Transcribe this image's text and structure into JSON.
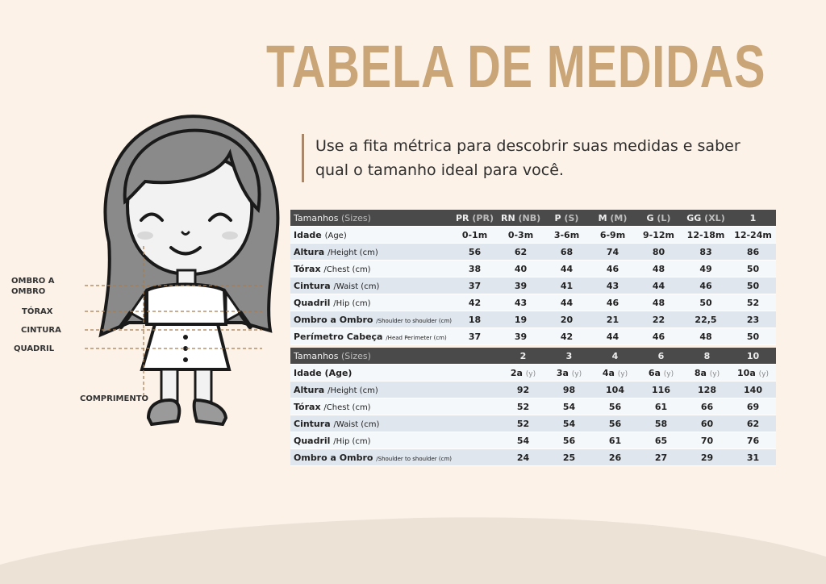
{
  "title": "TABELA DE MEDIDAS",
  "subtitle": "Use a fita métrica para descobrir suas medidas e saber qual o tamanho ideal para você.",
  "measure_labels": {
    "ombro_line1": "OMBRO A",
    "ombro_line2": "OMBRO",
    "torax": "TÓRAX",
    "cintura": "CINTURA",
    "quadril": "QUADRIL",
    "comprimento": "COMPRIMENTO"
  },
  "table1": {
    "header": {
      "label": "Tamanhos",
      "label_en": "(Sizes)",
      "sizes": [
        {
          "main": "PR",
          "en": "(PR)"
        },
        {
          "main": "RN",
          "en": "(NB)"
        },
        {
          "main": "P",
          "en": "(S)"
        },
        {
          "main": "M",
          "en": "(M)"
        },
        {
          "main": "G",
          "en": "(L)"
        },
        {
          "main": "GG",
          "en": "(XL)"
        },
        {
          "main": "1",
          "en": ""
        }
      ]
    },
    "rows": [
      {
        "pt": "Idade",
        "en": "(Age)",
        "values": [
          "0-1m",
          "0-3m",
          "3-6m",
          "6-9m",
          "9-12m",
          "12-18m",
          "12-24m"
        ]
      },
      {
        "pt": "Altura",
        "en": "/Height (cm)",
        "values": [
          "56",
          "62",
          "68",
          "74",
          "80",
          "83",
          "86"
        ]
      },
      {
        "pt": "Tórax",
        "en": "/Chest (cm)",
        "values": [
          "38",
          "40",
          "44",
          "46",
          "48",
          "49",
          "50"
        ]
      },
      {
        "pt": "Cintura",
        "en": "/Waist (cm)",
        "values": [
          "37",
          "39",
          "41",
          "43",
          "44",
          "46",
          "50"
        ]
      },
      {
        "pt": "Quadril",
        "en": "/Hip (cm)",
        "values": [
          "42",
          "43",
          "44",
          "46",
          "48",
          "50",
          "52"
        ]
      },
      {
        "pt": "Ombro a Ombro",
        "en": "/Shoulder to shoulder (cm)",
        "values": [
          "18",
          "19",
          "20",
          "21",
          "22",
          "22,5",
          "23"
        ]
      },
      {
        "pt": "Perímetro Cabeça",
        "en": "/Head Perimeter (cm)",
        "values": [
          "37",
          "39",
          "42",
          "44",
          "46",
          "48",
          "50"
        ]
      }
    ]
  },
  "table2": {
    "header": {
      "label": "Tamanhos",
      "label_en": "(Sizes)",
      "sizes": [
        "2",
        "3",
        "4",
        "6",
        "8",
        "10"
      ]
    },
    "age_row": {
      "label": "Idade (Age)",
      "values": [
        {
          "v": "2a",
          "u": "(y)"
        },
        {
          "v": "3a",
          "u": "(y)"
        },
        {
          "v": "4a",
          "u": "(y)"
        },
        {
          "v": "6a",
          "u": "(y)"
        },
        {
          "v": "8a",
          "u": "(y)"
        },
        {
          "v": "10a",
          "u": "(y)"
        }
      ]
    },
    "rows": [
      {
        "pt": "Altura",
        "en": "/Height (cm)",
        "values": [
          "92",
          "98",
          "104",
          "116",
          "128",
          "140"
        ]
      },
      {
        "pt": "Tórax",
        "en": "/Chest (cm)",
        "values": [
          "52",
          "54",
          "56",
          "61",
          "66",
          "69"
        ]
      },
      {
        "pt": "Cintura",
        "en": "/Waist (cm)",
        "values": [
          "52",
          "54",
          "56",
          "58",
          "60",
          "62"
        ]
      },
      {
        "pt": "Quadril",
        "en": "/Hip (cm)",
        "values": [
          "54",
          "56",
          "61",
          "65",
          "70",
          "76"
        ]
      },
      {
        "pt": "Ombro a Ombro",
        "en": "/Shoulder to shoulder (cm)",
        "values": [
          "24",
          "25",
          "26",
          "27",
          "29",
          "31"
        ]
      }
    ]
  },
  "colors": {
    "background": "#fcf2e8",
    "title": "#c9a577",
    "wave": "#ede2d6",
    "table_header": "#4a4a4a",
    "row_blue": "#dfe6ee"
  }
}
